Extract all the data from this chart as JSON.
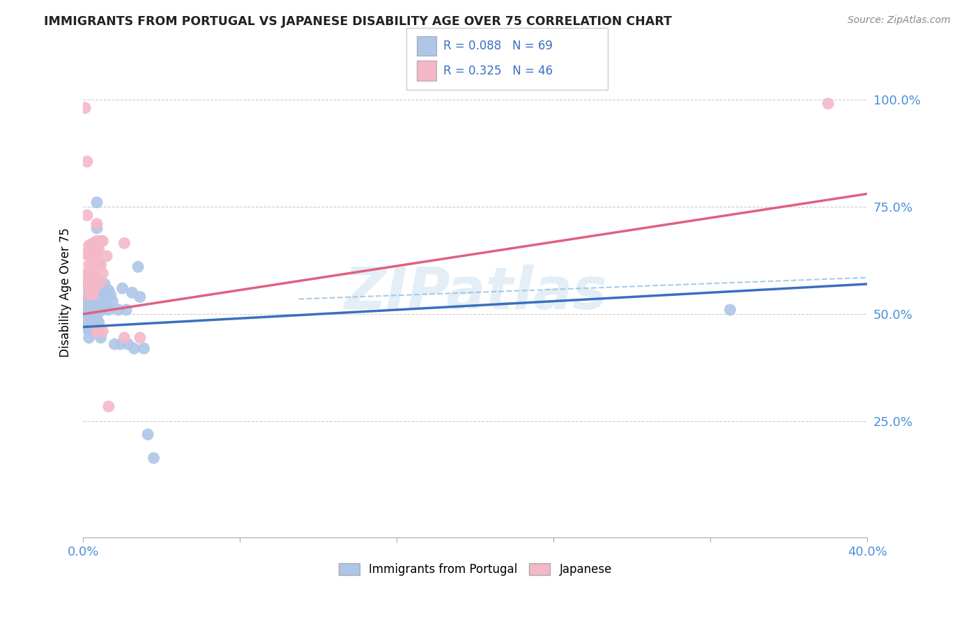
{
  "title": "IMMIGRANTS FROM PORTUGAL VS JAPANESE DISABILITY AGE OVER 75 CORRELATION CHART",
  "source": "Source: ZipAtlas.com",
  "ylabel": "Disability Age Over 75",
  "watermark": "ZIPatlas",
  "legend1_label": "Immigrants from Portugal",
  "legend2_label": "Japanese",
  "r1": 0.088,
  "n1": 69,
  "r2": 0.325,
  "n2": 46,
  "blue_color": "#aec6e8",
  "pink_color": "#f4b8c8",
  "blue_line_color": "#3a6fbf",
  "pink_line_color": "#e06080",
  "blue_line": [
    0.0,
    0.47,
    0.4,
    0.57
  ],
  "pink_line": [
    0.0,
    0.5,
    0.4,
    0.78
  ],
  "dash_line": [
    0.11,
    0.535,
    0.4,
    0.585
  ],
  "xmin": 0.0,
  "xmax": 0.4,
  "ymin": -0.02,
  "ymax": 1.12,
  "ytick_vals": [
    0.25,
    0.5,
    0.75,
    1.0
  ],
  "ytick_labels": [
    "25.0%",
    "50.0%",
    "75.0%",
    "100.0%"
  ],
  "xtick_vals": [
    0.0,
    0.08,
    0.16,
    0.24,
    0.32,
    0.4
  ],
  "blue_scatter": [
    [
      0.0,
      0.49
    ],
    [
      0.001,
      0.53
    ],
    [
      0.001,
      0.51
    ],
    [
      0.001,
      0.48
    ],
    [
      0.002,
      0.57
    ],
    [
      0.002,
      0.545
    ],
    [
      0.002,
      0.52
    ],
    [
      0.002,
      0.49
    ],
    [
      0.002,
      0.465
    ],
    [
      0.003,
      0.58
    ],
    [
      0.003,
      0.56
    ],
    [
      0.003,
      0.545
    ],
    [
      0.003,
      0.525
    ],
    [
      0.003,
      0.505
    ],
    [
      0.003,
      0.49
    ],
    [
      0.003,
      0.465
    ],
    [
      0.003,
      0.445
    ],
    [
      0.004,
      0.55
    ],
    [
      0.004,
      0.525
    ],
    [
      0.004,
      0.505
    ],
    [
      0.004,
      0.485
    ],
    [
      0.004,
      0.465
    ],
    [
      0.005,
      0.555
    ],
    [
      0.005,
      0.535
    ],
    [
      0.005,
      0.51
    ],
    [
      0.005,
      0.49
    ],
    [
      0.005,
      0.47
    ],
    [
      0.006,
      0.55
    ],
    [
      0.006,
      0.53
    ],
    [
      0.006,
      0.51
    ],
    [
      0.006,
      0.485
    ],
    [
      0.007,
      0.76
    ],
    [
      0.007,
      0.7
    ],
    [
      0.007,
      0.56
    ],
    [
      0.007,
      0.54
    ],
    [
      0.007,
      0.51
    ],
    [
      0.007,
      0.49
    ],
    [
      0.007,
      0.465
    ],
    [
      0.008,
      0.545
    ],
    [
      0.008,
      0.525
    ],
    [
      0.008,
      0.505
    ],
    [
      0.008,
      0.48
    ],
    [
      0.009,
      0.555
    ],
    [
      0.009,
      0.445
    ],
    [
      0.01,
      0.56
    ],
    [
      0.01,
      0.54
    ],
    [
      0.01,
      0.51
    ],
    [
      0.011,
      0.57
    ],
    [
      0.011,
      0.545
    ],
    [
      0.012,
      0.545
    ],
    [
      0.012,
      0.52
    ],
    [
      0.013,
      0.555
    ],
    [
      0.013,
      0.51
    ],
    [
      0.014,
      0.545
    ],
    [
      0.015,
      0.53
    ],
    [
      0.016,
      0.43
    ],
    [
      0.018,
      0.51
    ],
    [
      0.019,
      0.43
    ],
    [
      0.02,
      0.56
    ],
    [
      0.022,
      0.51
    ],
    [
      0.023,
      0.43
    ],
    [
      0.025,
      0.55
    ],
    [
      0.026,
      0.42
    ],
    [
      0.028,
      0.61
    ],
    [
      0.029,
      0.54
    ],
    [
      0.031,
      0.42
    ],
    [
      0.033,
      0.22
    ],
    [
      0.036,
      0.165
    ],
    [
      0.33,
      0.51
    ]
  ],
  "pink_scatter": [
    [
      0.001,
      0.98
    ],
    [
      0.001,
      0.64
    ],
    [
      0.002,
      0.855
    ],
    [
      0.002,
      0.73
    ],
    [
      0.002,
      0.595
    ],
    [
      0.002,
      0.57
    ],
    [
      0.003,
      0.66
    ],
    [
      0.003,
      0.64
    ],
    [
      0.003,
      0.615
    ],
    [
      0.003,
      0.595
    ],
    [
      0.003,
      0.57
    ],
    [
      0.003,
      0.545
    ],
    [
      0.004,
      0.66
    ],
    [
      0.004,
      0.64
    ],
    [
      0.004,
      0.61
    ],
    [
      0.004,
      0.575
    ],
    [
      0.004,
      0.555
    ],
    [
      0.005,
      0.665
    ],
    [
      0.005,
      0.635
    ],
    [
      0.005,
      0.6
    ],
    [
      0.005,
      0.57
    ],
    [
      0.005,
      0.545
    ],
    [
      0.006,
      0.64
    ],
    [
      0.006,
      0.615
    ],
    [
      0.006,
      0.585
    ],
    [
      0.006,
      0.56
    ],
    [
      0.007,
      0.71
    ],
    [
      0.007,
      0.67
    ],
    [
      0.007,
      0.645
    ],
    [
      0.007,
      0.46
    ],
    [
      0.008,
      0.65
    ],
    [
      0.008,
      0.62
    ],
    [
      0.008,
      0.575
    ],
    [
      0.008,
      0.46
    ],
    [
      0.009,
      0.67
    ],
    [
      0.009,
      0.615
    ],
    [
      0.009,
      0.575
    ],
    [
      0.01,
      0.67
    ],
    [
      0.01,
      0.595
    ],
    [
      0.01,
      0.46
    ],
    [
      0.012,
      0.635
    ],
    [
      0.013,
      0.285
    ],
    [
      0.021,
      0.665
    ],
    [
      0.021,
      0.445
    ],
    [
      0.029,
      0.445
    ],
    [
      0.38,
      0.99
    ]
  ]
}
